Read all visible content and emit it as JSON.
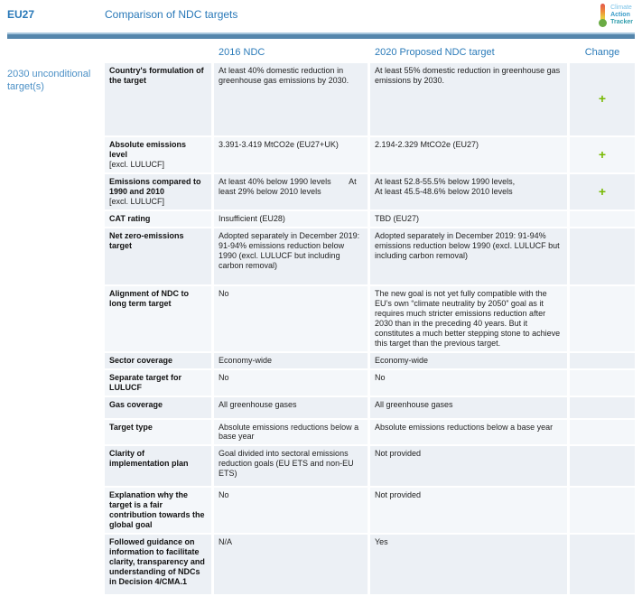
{
  "header": {
    "country": "EU27",
    "title": "Comparison of NDC targets",
    "logo": {
      "line1": "Climate",
      "line2": "Action",
      "line3": "Tracker"
    }
  },
  "columns": {
    "col2016": "2016 NDC",
    "col2020": "2020 Proposed NDC target",
    "change": "Change"
  },
  "sidebar": {
    "label": "2030 unconditional target(s)"
  },
  "colors": {
    "title_blue": "#2878b8",
    "sidebar_blue": "#4b90c6",
    "bar_dark": "#5586ac",
    "bar_light": "#a7c6dd",
    "plus_green": "#76b900",
    "row_dark": "#ecf0f5",
    "row_light": "#f4f7fa"
  },
  "rows": [
    {
      "label": "Country's formulation of the target",
      "sublabel": "",
      "v2016": "At least 40% domestic reduction in greenhouse gas emissions by 2030.",
      "v2020": "At least 55% domestic reduction in greenhouse gas emissions by 2030.",
      "change": "+"
    },
    {
      "label": "Absolute emissions level",
      "sublabel": "[excl. LULUCF]",
      "v2016": "3.391-3.419 MtCO2e (EU27+UK)",
      "v2020": "2.194-2.329 MtCO2e (EU27)",
      "change": "+"
    },
    {
      "label": "Emissions compared to 1990 and 2010",
      "sublabel": "[excl. LULUCF]",
      "v2016": "At least 40% below 1990 levels        At least 29% below 2010 levels",
      "v2020": "At least 52.8-55.5% below 1990 levels,\nAt least 45.5-48.6% below 2010 levels",
      "change": "+"
    },
    {
      "label": "CAT rating",
      "sublabel": "",
      "v2016": "Insufficient (EU28)",
      "v2020": "TBD (EU27)",
      "change": ""
    },
    {
      "label": "Net zero-emissions target",
      "sublabel": "",
      "v2016": "Adopted separately in December 2019: 91-94% emissions reduction below 1990 (excl. LULUCF but including carbon removal)",
      "v2020": "Adopted separately in December 2019: 91-94% emissions reduction below 1990 (excl. LULUCF but including carbon removal)",
      "change": ""
    },
    {
      "label": "Alignment of NDC to long term target",
      "sublabel": "",
      "v2016": "No",
      "v2020": "The new goal is not yet fully compatible with the EU’s own “climate neutrality by 2050” goal as it requires much stricter emissions reduction after 2030 than in the preceding 40 years. But it constitutes a much better stepping stone to achieve this target than the previous target.",
      "change": ""
    },
    {
      "label": "Sector coverage",
      "sublabel": "",
      "v2016": "Economy-wide",
      "v2020": "Economy-wide",
      "change": ""
    },
    {
      "label": "Separate target for LULUCF",
      "sublabel": "",
      "v2016": "No",
      "v2020": "No",
      "change": ""
    },
    {
      "label": "Gas coverage",
      "sublabel": "",
      "v2016": "All greenhouse gases",
      "v2020": "All greenhouse gases",
      "change": ""
    },
    {
      "label": "Target type",
      "sublabel": "",
      "v2016": "Absolute emissions reductions below a base year",
      "v2020": "Absolute emissions reductions below a base year",
      "change": ""
    },
    {
      "label": "Clarity of implementation plan",
      "sublabel": "",
      "v2016": "Goal divided into sectoral emissions reduction goals (EU ETS and non-EU ETS)",
      "v2020": "Not provided",
      "change": ""
    },
    {
      "label": "Explanation why the target is a fair contribution towards the global goal",
      "sublabel": "",
      "v2016": "No",
      "v2020": "Not provided",
      "change": ""
    },
    {
      "label": "Followed guidance on information to facilitate clarity, transparency and understanding of NDCs in Decision 4/CMA.1",
      "sublabel": "",
      "v2016": "N/A",
      "v2020": "Yes",
      "change": ""
    }
  ]
}
